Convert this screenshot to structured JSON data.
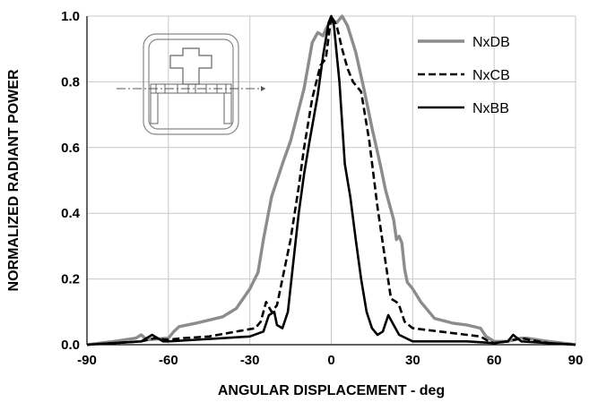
{
  "chart_data": {
    "type": "line",
    "xlabel": "ANGULAR DISPLACEMENT - deg",
    "ylabel": "NORMALIZED RADIANT POWER",
    "xlim": [
      -90,
      90
    ],
    "ylim": [
      0,
      1.0
    ],
    "x_ticks": [
      "-90",
      "-60",
      "-30",
      "0",
      "30",
      "60",
      "90"
    ],
    "y_ticks": [
      "0.0",
      "0.2",
      "0.4",
      "0.6",
      "0.8",
      "1.0"
    ],
    "grid": true,
    "legend_position": "top-right",
    "inset": "package-outline-icon",
    "series": [
      {
        "name": "NxDB",
        "color": "#8c8c8c",
        "style": "solid",
        "points": [
          [
            -90,
            0.0
          ],
          [
            -80,
            0.01
          ],
          [
            -72,
            0.02
          ],
          [
            -70,
            0.03
          ],
          [
            -68,
            0.015
          ],
          [
            -60,
            0.02
          ],
          [
            -58,
            0.04
          ],
          [
            -56,
            0.055
          ],
          [
            -50,
            0.065
          ],
          [
            -40,
            0.085
          ],
          [
            -35,
            0.11
          ],
          [
            -30,
            0.17
          ],
          [
            -27,
            0.22
          ],
          [
            -25,
            0.32
          ],
          [
            -22,
            0.45
          ],
          [
            -18,
            0.55
          ],
          [
            -15,
            0.62
          ],
          [
            -10,
            0.78
          ],
          [
            -7,
            0.92
          ],
          [
            -5,
            0.95
          ],
          [
            -3,
            0.94
          ],
          [
            -2,
            0.96
          ],
          [
            0,
            0.99
          ],
          [
            2,
            0.98
          ],
          [
            4,
            1.0
          ],
          [
            6,
            0.97
          ],
          [
            9,
            0.89
          ],
          [
            12,
            0.78
          ],
          [
            15,
            0.66
          ],
          [
            18,
            0.55
          ],
          [
            20,
            0.47
          ],
          [
            23,
            0.38
          ],
          [
            24,
            0.32
          ],
          [
            25,
            0.33
          ],
          [
            26,
            0.31
          ],
          [
            27,
            0.23
          ],
          [
            28,
            0.19
          ],
          [
            30,
            0.17
          ],
          [
            33,
            0.13
          ],
          [
            38,
            0.08
          ],
          [
            45,
            0.065
          ],
          [
            50,
            0.06
          ],
          [
            55,
            0.05
          ],
          [
            57,
            0.025
          ],
          [
            60,
            0.01
          ],
          [
            65,
            0.01
          ],
          [
            70,
            0.02
          ],
          [
            72,
            0.02
          ],
          [
            80,
            0.01
          ],
          [
            90,
            0.0
          ]
        ]
      },
      {
        "name": "NxCB",
        "color": "#000000",
        "style": "dashed",
        "points": [
          [
            -90,
            0.0
          ],
          [
            -80,
            0.005
          ],
          [
            -70,
            0.01
          ],
          [
            -65,
            0.02
          ],
          [
            -60,
            0.015
          ],
          [
            -55,
            0.02
          ],
          [
            -45,
            0.025
          ],
          [
            -35,
            0.04
          ],
          [
            -28,
            0.05
          ],
          [
            -26,
            0.07
          ],
          [
            -24,
            0.13
          ],
          [
            -22,
            0.1
          ],
          [
            -20,
            0.12
          ],
          [
            -18,
            0.2
          ],
          [
            -15,
            0.32
          ],
          [
            -12,
            0.48
          ],
          [
            -10,
            0.6
          ],
          [
            -7,
            0.75
          ],
          [
            -4,
            0.85
          ],
          [
            -2,
            0.87
          ],
          [
            0,
            1.0
          ],
          [
            2,
            0.97
          ],
          [
            4,
            0.9
          ],
          [
            6,
            0.84
          ],
          [
            8,
            0.8
          ],
          [
            11,
            0.77
          ],
          [
            14,
            0.62
          ],
          [
            17,
            0.42
          ],
          [
            20,
            0.25
          ],
          [
            22,
            0.14
          ],
          [
            24,
            0.13
          ],
          [
            25,
            0.12
          ],
          [
            27,
            0.07
          ],
          [
            30,
            0.05
          ],
          [
            40,
            0.04
          ],
          [
            50,
            0.03
          ],
          [
            55,
            0.025
          ],
          [
            58,
            0.01
          ],
          [
            60,
            0.005
          ],
          [
            65,
            0.01
          ],
          [
            70,
            0.02
          ],
          [
            80,
            0.005
          ],
          [
            90,
            0.0
          ]
        ]
      },
      {
        "name": "NxBB",
        "color": "#000000",
        "style": "solid",
        "points": [
          [
            -90,
            0.0
          ],
          [
            -80,
            0.005
          ],
          [
            -70,
            0.01
          ],
          [
            -66,
            0.03
          ],
          [
            -62,
            0.01
          ],
          [
            -60,
            0.01
          ],
          [
            -50,
            0.015
          ],
          [
            -40,
            0.02
          ],
          [
            -30,
            0.025
          ],
          [
            -25,
            0.04
          ],
          [
            -23,
            0.09
          ],
          [
            -21,
            0.1
          ],
          [
            -20,
            0.06
          ],
          [
            -18,
            0.05
          ],
          [
            -16,
            0.1
          ],
          [
            -14,
            0.25
          ],
          [
            -12,
            0.4
          ],
          [
            -10,
            0.52
          ],
          [
            -8,
            0.62
          ],
          [
            -5,
            0.76
          ],
          [
            -3,
            0.88
          ],
          [
            -1,
            0.98
          ],
          [
            0,
            1.0
          ],
          [
            1,
            0.97
          ],
          [
            3,
            0.8
          ],
          [
            5,
            0.55
          ],
          [
            7,
            0.45
          ],
          [
            9,
            0.32
          ],
          [
            11,
            0.2
          ],
          [
            13,
            0.1
          ],
          [
            15,
            0.05
          ],
          [
            17,
            0.03
          ],
          [
            19,
            0.04
          ],
          [
            21,
            0.09
          ],
          [
            23,
            0.06
          ],
          [
            25,
            0.03
          ],
          [
            30,
            0.01
          ],
          [
            40,
            0.01
          ],
          [
            50,
            0.01
          ],
          [
            60,
            0.005
          ],
          [
            65,
            0.01
          ],
          [
            67,
            0.03
          ],
          [
            70,
            0.01
          ],
          [
            80,
            0.005
          ],
          [
            90,
            0.0
          ]
        ]
      }
    ]
  }
}
